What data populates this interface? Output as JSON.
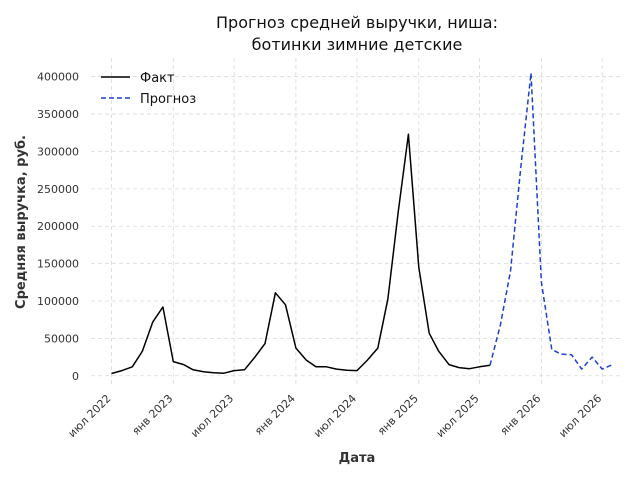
{
  "chart_data": {
    "type": "line",
    "title_line1": "Прогноз средней выручки, ниша:",
    "title_line2": "ботинки зимние детские",
    "xlabel": "Дата",
    "ylabel": "Средняя выручка, руб.",
    "ylim": [
      -15000,
      425000
    ],
    "yticks": [
      0,
      50000,
      100000,
      150000,
      200000,
      250000,
      300000,
      350000,
      400000
    ],
    "ytick_labels": [
      "0",
      "50000",
      "100000",
      "150000",
      "200000",
      "250000",
      "300000",
      "350000",
      "400000"
    ],
    "xlim": [
      "2022-05-01",
      "2026-09-01"
    ],
    "xticks": [
      "2022-07-01",
      "2023-01-01",
      "2023-07-01",
      "2024-01-01",
      "2024-07-01",
      "2025-01-01",
      "2025-07-01",
      "2026-01-01",
      "2026-07-01"
    ],
    "xtick_labels": [
      "июл 2022",
      "янв 2023",
      "июл 2023",
      "янв 2024",
      "июл 2024",
      "янв 2025",
      "июл 2025",
      "янв 2026",
      "июл 2026"
    ],
    "grid": true,
    "legend_position": "top-left",
    "series": [
      {
        "name": "Факт",
        "color": "#000000",
        "style": "solid",
        "points": [
          [
            "2022-07-01",
            3000
          ],
          [
            "2022-08-01",
            7000
          ],
          [
            "2022-09-01",
            12000
          ],
          [
            "2022-10-01",
            33000
          ],
          [
            "2022-11-01",
            72000
          ],
          [
            "2022-12-01",
            92000
          ],
          [
            "2023-01-01",
            19000
          ],
          [
            "2023-02-01",
            15000
          ],
          [
            "2023-03-01",
            8000
          ],
          [
            "2023-04-01",
            5500
          ],
          [
            "2023-05-01",
            4000
          ],
          [
            "2023-06-01",
            3500
          ],
          [
            "2023-07-01",
            7000
          ],
          [
            "2023-08-01",
            8000
          ],
          [
            "2023-09-01",
            25000
          ],
          [
            "2023-10-01",
            43000
          ],
          [
            "2023-11-01",
            111000
          ],
          [
            "2023-12-01",
            95000
          ],
          [
            "2024-01-01",
            37000
          ],
          [
            "2024-02-01",
            21000
          ],
          [
            "2024-03-01",
            12000
          ],
          [
            "2024-04-01",
            12000
          ],
          [
            "2024-05-01",
            9000
          ],
          [
            "2024-06-01",
            7500
          ],
          [
            "2024-07-01",
            7000
          ],
          [
            "2024-08-01",
            21000
          ],
          [
            "2024-09-01",
            37000
          ],
          [
            "2024-10-01",
            103000
          ],
          [
            "2024-11-01",
            220000
          ],
          [
            "2024-12-01",
            323000
          ],
          [
            "2025-01-01",
            145000
          ],
          [
            "2025-02-01",
            57000
          ],
          [
            "2025-03-01",
            33000
          ],
          [
            "2025-04-01",
            15000
          ],
          [
            "2025-05-01",
            11000
          ],
          [
            "2025-06-01",
            9500
          ],
          [
            "2025-07-01",
            12000
          ],
          [
            "2025-08-01",
            14000
          ]
        ]
      },
      {
        "name": "Прогноз",
        "color": "#1f3fcc",
        "style": "dashed",
        "points": [
          [
            "2025-08-01",
            14000
          ],
          [
            "2025-09-01",
            68000
          ],
          [
            "2025-10-01",
            140000
          ],
          [
            "2025-11-01",
            280000
          ],
          [
            "2025-12-01",
            405000
          ],
          [
            "2026-01-01",
            125000
          ],
          [
            "2026-02-01",
            35000
          ],
          [
            "2026-03-01",
            29000
          ],
          [
            "2026-04-01",
            28000
          ],
          [
            "2026-05-01",
            9000
          ],
          [
            "2026-06-01",
            25000
          ],
          [
            "2026-07-01",
            9000
          ],
          [
            "2026-08-01",
            15000
          ]
        ]
      }
    ]
  }
}
